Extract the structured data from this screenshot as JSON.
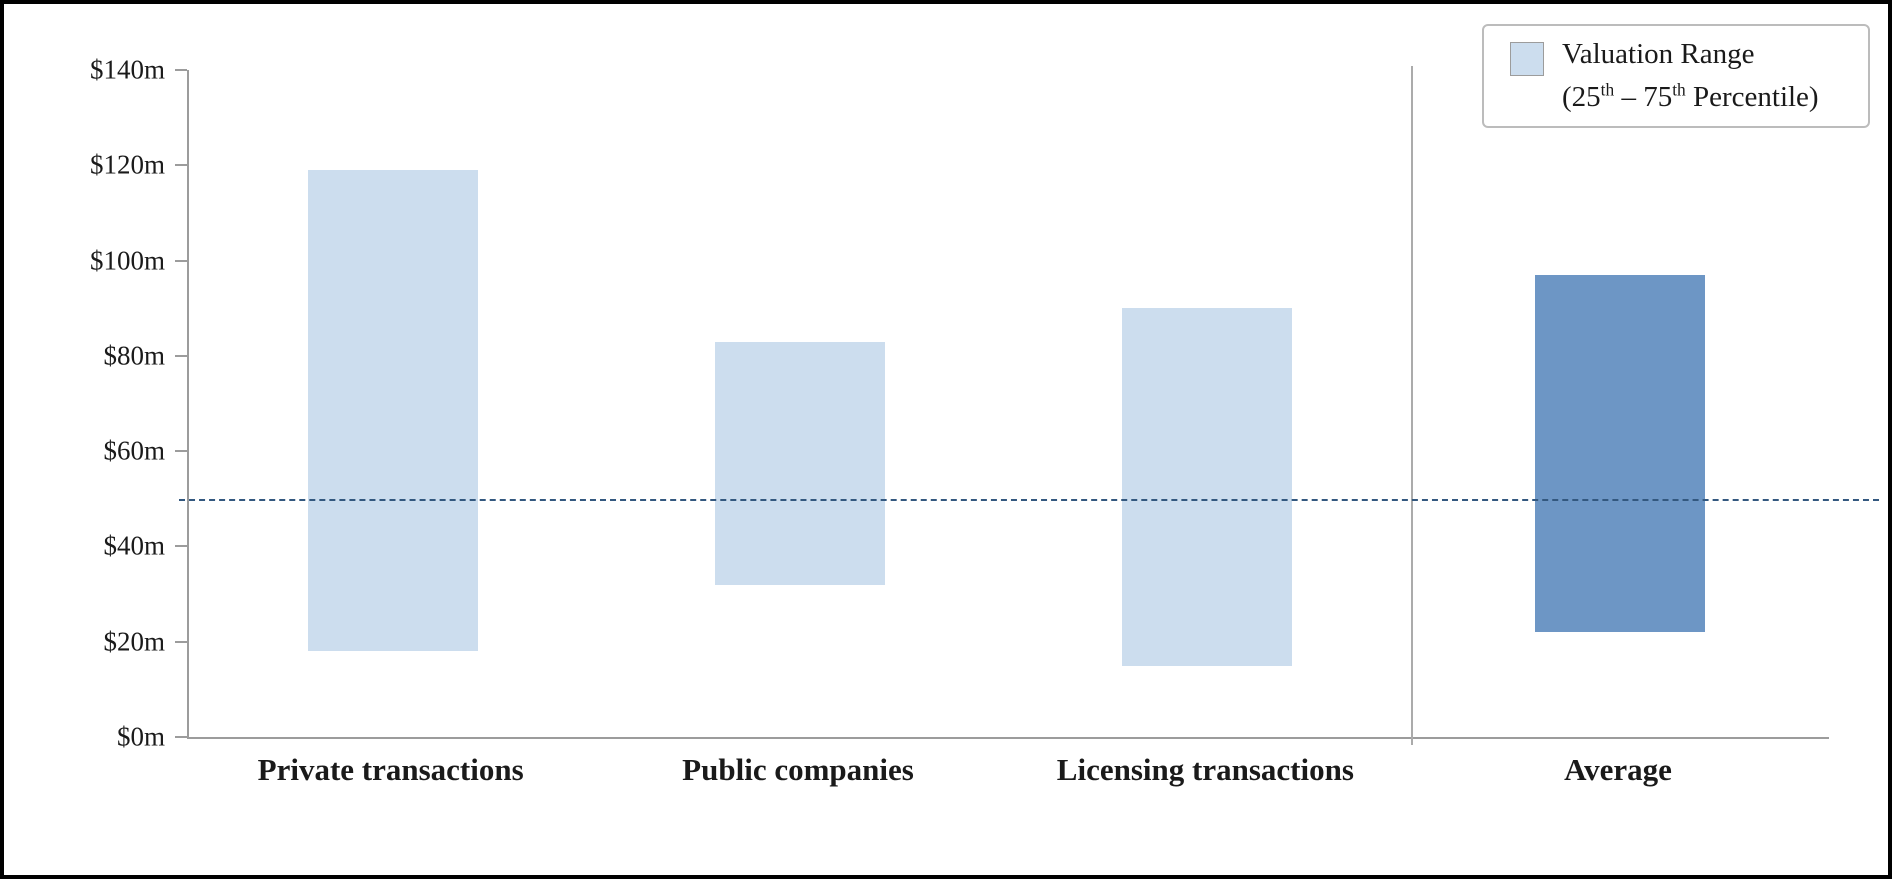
{
  "chart_data": {
    "type": "bar",
    "variant": "floating-range-bars",
    "title": "",
    "xlabel": "",
    "ylabel": "",
    "categories": [
      "Private transactions",
      "Public companies",
      "Licensing transactions",
      "Average"
    ],
    "series": [
      {
        "name": "Valuation Range (25th - 75th Percentile)",
        "unit": "$m",
        "ranges_m": [
          {
            "category": "Private transactions",
            "low": 18,
            "high": 119
          },
          {
            "category": "Public companies",
            "low": 32,
            "high": 83
          },
          {
            "category": "Licensing transactions",
            "low": 15,
            "high": 90
          },
          {
            "category": "Average",
            "low": 22,
            "high": 97
          }
        ]
      }
    ],
    "ylim": [
      0,
      140
    ],
    "ytick_step": 20,
    "ytick_labels": [
      "$0m",
      "$20m",
      "$40m",
      "$60m",
      "$80m",
      "$100m",
      "$120m",
      "$140m"
    ],
    "grid": "off",
    "reference_line": {
      "value": 50,
      "style": "dashed"
    },
    "separator_before_category": "Average",
    "legend": {
      "position": "top-right",
      "line1": "Valuation Range",
      "line2_parts": {
        "open": "(25",
        "sup1": "th",
        "dash": " – 75",
        "sup2": "th",
        "close": " Percentile)"
      }
    },
    "colors": {
      "range_bar": "#ccddee",
      "average_bar": "#6d96c5",
      "reference_line": "#33587f",
      "axis": "#9c9c9c",
      "frame_border": "#000000"
    }
  }
}
